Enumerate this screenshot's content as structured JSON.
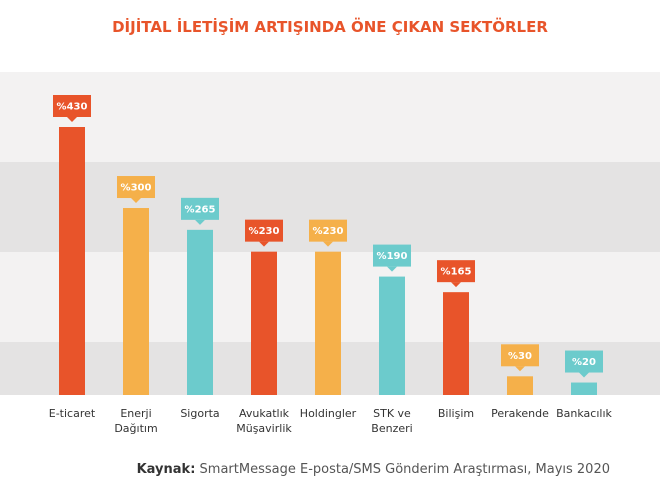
{
  "chart_data": {
    "type": "bar",
    "title": "DİJİTAL İLETİŞİM ARTIŞINDA ÖNE ÇIKAN SEKTÖRLER",
    "categories": [
      "E-ticaret",
      "Enerji Dağıtım",
      "Sigorta",
      "Avukatlık Müşavirlik",
      "Holdingler",
      "STK ve Benzeri",
      "Bilişim",
      "Perakende",
      "Bankacılık"
    ],
    "values": [
      430,
      300,
      265,
      230,
      230,
      190,
      165,
      30,
      20
    ],
    "value_labels": [
      "%430",
      "%300",
      "%265",
      "%230",
      "%230",
      "%190",
      "%165",
      "%30",
      "%20"
    ],
    "colors": [
      "#e8542a",
      "#f5b04a",
      "#6ccbcc",
      "#e8542a",
      "#f5b04a",
      "#6ccbcc",
      "#e8542a",
      "#f5b04a",
      "#6ccbcc"
    ]
  },
  "source": {
    "label": "Kaynak:",
    "text": "SmartMessage E-posta/SMS Gönderim Araştırması, Mayıs 2020"
  }
}
